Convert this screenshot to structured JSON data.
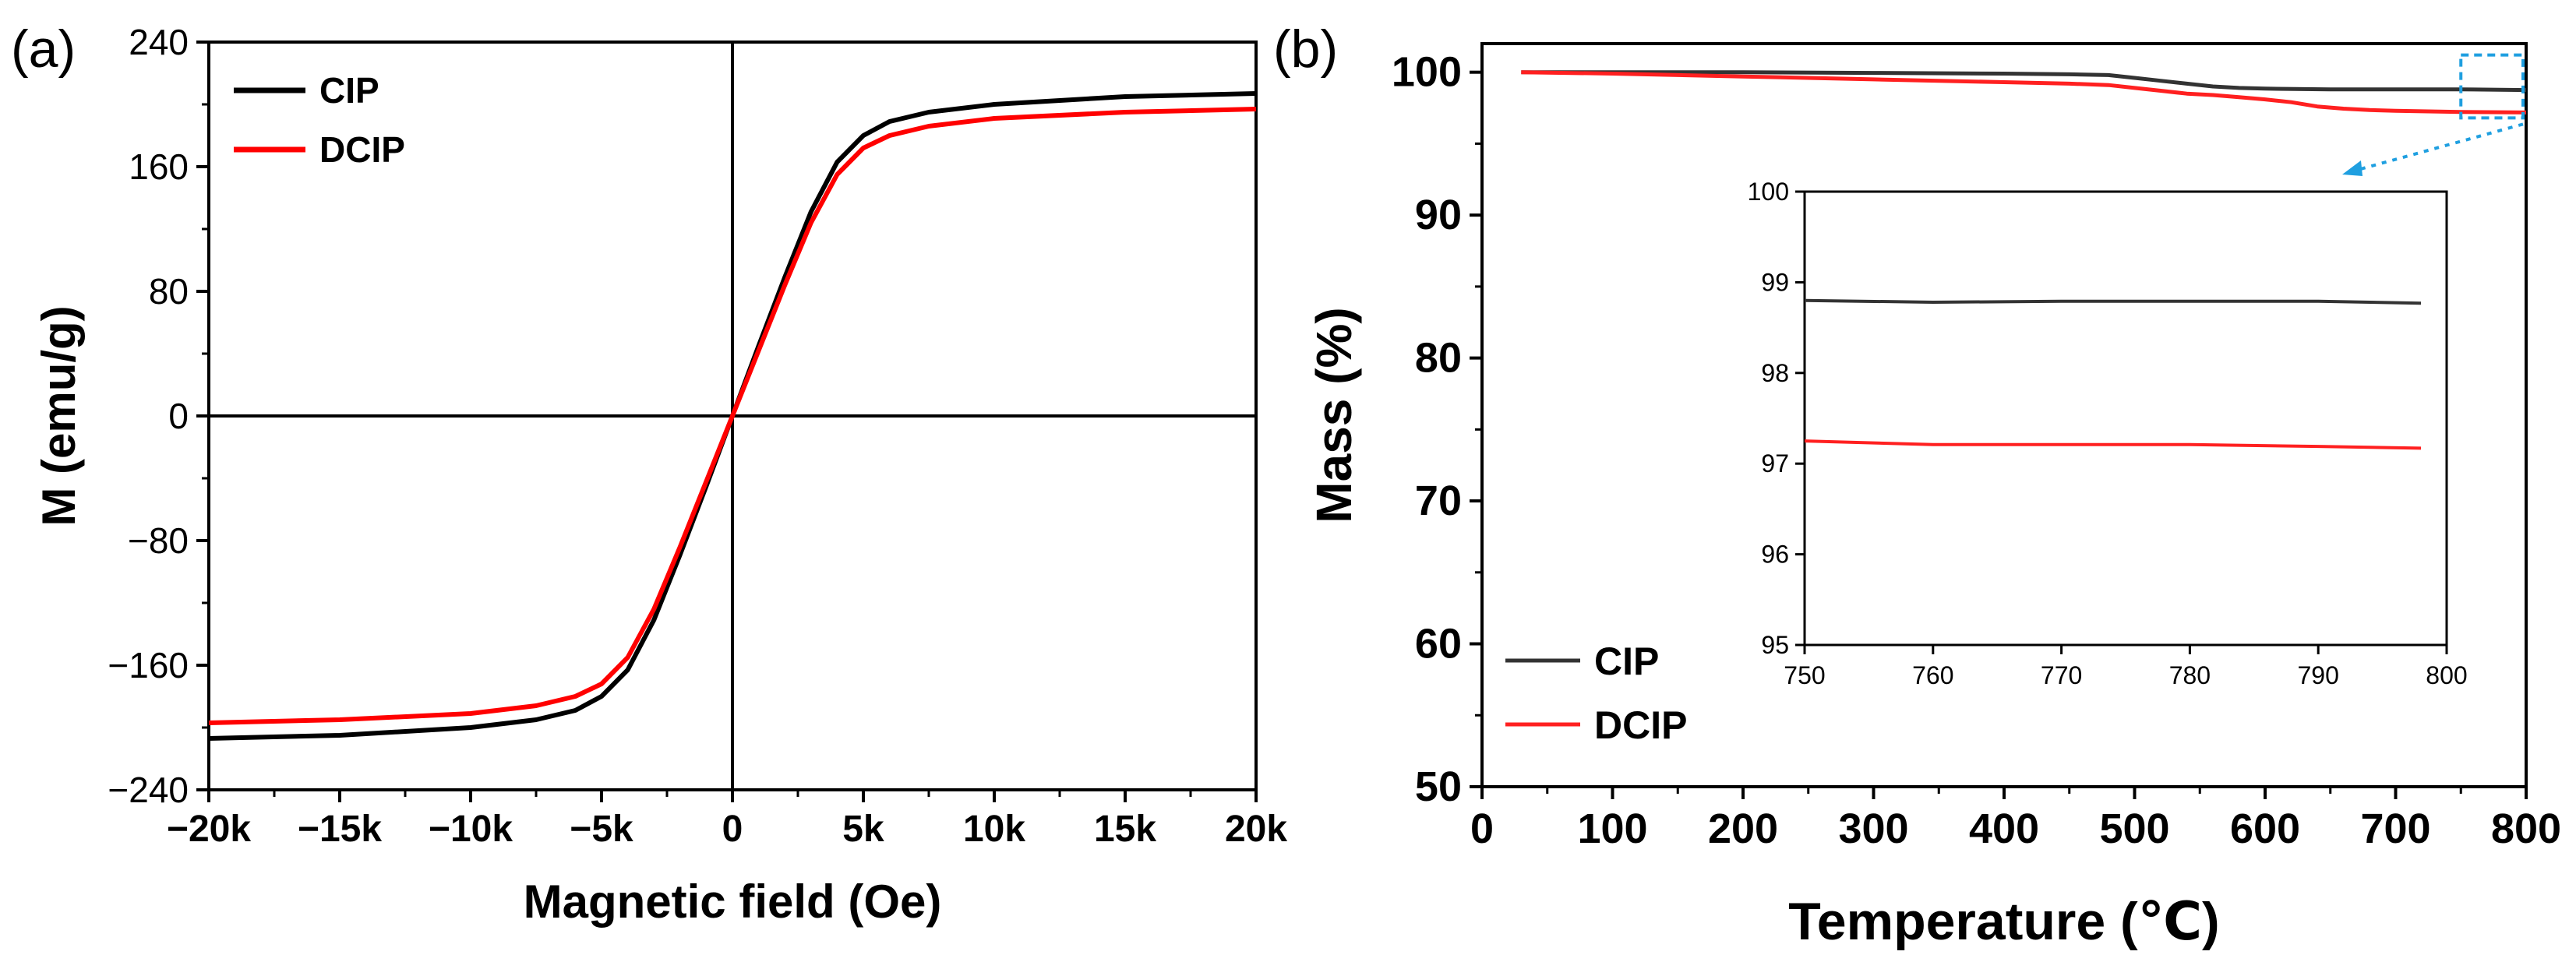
{
  "chart_data": [
    {
      "type": "line",
      "panel_label": "(a)",
      "xlabel": "Magnetic field (Oe)",
      "ylabel": "M (emu/g)",
      "xlim": [
        -20000,
        20000
      ],
      "ylim": [
        -240,
        240
      ],
      "xticks": [
        -20000,
        -15000,
        -10000,
        -5000,
        0,
        5000,
        10000,
        15000,
        20000
      ],
      "xtick_labels": [
        "−20k",
        "−15k",
        "−10k",
        "−5k",
        "0",
        "5k",
        "10k",
        "15k",
        "20k"
      ],
      "yticks": [
        -240,
        -160,
        -80,
        0,
        80,
        160,
        240
      ],
      "ytick_labels": [
        "−240",
        "−160",
        "−80",
        "0",
        "80",
        "160",
        "240"
      ],
      "zero_lines": true,
      "legend_position": "top-left",
      "series": [
        {
          "name": "CIP",
          "color": "#000000",
          "x": [
            -20000,
            -15000,
            -10000,
            -7500,
            -6000,
            -5000,
            -4000,
            -3000,
            -2000,
            -1000,
            0,
            1000,
            2000,
            3000,
            4000,
            5000,
            6000,
            7500,
            10000,
            15000,
            20000
          ],
          "y": [
            -207,
            -205,
            -200,
            -195,
            -189,
            -180,
            -163,
            -131,
            -89,
            -45,
            0,
            45,
            89,
            131,
            163,
            180,
            189,
            195,
            200,
            205,
            207
          ]
        },
        {
          "name": "DCIP",
          "color": "#ff0000",
          "x": [
            -20000,
            -15000,
            -10000,
            -7500,
            -6000,
            -5000,
            -4000,
            -3000,
            -2000,
            -1000,
            0,
            1000,
            2000,
            3000,
            4000,
            5000,
            6000,
            7500,
            10000,
            15000,
            20000
          ],
          "y": [
            -197,
            -195,
            -191,
            -186,
            -180,
            -172,
            -155,
            -124,
            -84,
            -42,
            0,
            42,
            84,
            124,
            155,
            172,
            180,
            186,
            191,
            195,
            197
          ]
        }
      ]
    },
    {
      "type": "line",
      "panel_label": "(b)",
      "xlabel": "Temperature (℃)",
      "ylabel": "Mass (%)",
      "xlim": [
        0,
        800
      ],
      "ylim": [
        50,
        102
      ],
      "xticks": [
        0,
        100,
        200,
        300,
        400,
        500,
        600,
        700,
        800
      ],
      "xtick_labels": [
        "0",
        "100",
        "200",
        "300",
        "400",
        "500",
        "600",
        "700",
        "800"
      ],
      "yticks": [
        50,
        60,
        70,
        80,
        90,
        100
      ],
      "ytick_labels": [
        "50",
        "60",
        "70",
        "80",
        "90",
        "100"
      ],
      "legend_position": "bottom-left",
      "series": [
        {
          "name": "CIP",
          "color": "#333333",
          "x": [
            30,
            100,
            200,
            300,
            400,
            450,
            480,
            500,
            520,
            540,
            560,
            580,
            600,
            650,
            700,
            750,
            800
          ],
          "y": [
            100,
            100,
            100,
            99.95,
            99.9,
            99.85,
            99.8,
            99.6,
            99.4,
            99.2,
            99.0,
            98.9,
            98.85,
            98.8,
            98.8,
            98.8,
            98.75
          ]
        },
        {
          "name": "DCIP",
          "color": "#ff2020",
          "x": [
            30,
            100,
            200,
            300,
            400,
            450,
            480,
            500,
            520,
            540,
            560,
            580,
            600,
            620,
            640,
            660,
            680,
            700,
            750,
            800
          ],
          "y": [
            100,
            99.9,
            99.7,
            99.5,
            99.3,
            99.2,
            99.1,
            98.9,
            98.7,
            98.5,
            98.4,
            98.25,
            98.1,
            97.9,
            97.6,
            97.45,
            97.35,
            97.3,
            97.22,
            97.18
          ]
        }
      ],
      "inset": {
        "xlim": [
          750,
          800
        ],
        "ylim": [
          95,
          100
        ],
        "xticks": [
          750,
          760,
          770,
          780,
          790,
          800
        ],
        "xtick_labels": [
          "750",
          "760",
          "770",
          "780",
          "790",
          "800"
        ],
        "yticks": [
          95,
          96,
          97,
          98,
          99,
          100
        ],
        "ytick_labels": [
          "95",
          "96",
          "97",
          "98",
          "99",
          "100"
        ],
        "series": [
          {
            "name": "CIP",
            "color": "#333333",
            "x": [
              750,
              760,
              770,
              780,
              790,
              798
            ],
            "y": [
              98.8,
              98.78,
              98.79,
              98.79,
              98.79,
              98.77
            ]
          },
          {
            "name": "DCIP",
            "color": "#ff2020",
            "x": [
              750,
              760,
              770,
              780,
              790,
              798
            ],
            "y": [
              97.25,
              97.21,
              97.21,
              97.21,
              97.19,
              97.17
            ]
          }
        ],
        "highlight_color": "#1f9fe0"
      }
    }
  ]
}
